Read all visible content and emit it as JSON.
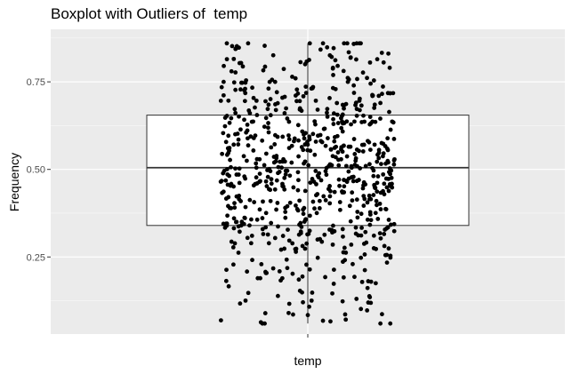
{
  "chart_data": {
    "type": "boxplot",
    "title": "Boxplot with Outliers of  temp",
    "xlabel": "temp",
    "ylabel": "Frequency",
    "categories": [
      "temp"
    ],
    "x_tick_labels": [
      "temp"
    ],
    "y_tick_labels": [
      "0.25",
      "0.50",
      "0.75"
    ],
    "y_ticks": [
      0.25,
      0.5,
      0.75
    ],
    "ylim": [
      0.03,
      0.9
    ],
    "grid": true,
    "legend": "none",
    "box": {
      "min": 0.06,
      "q1": 0.34,
      "median": 0.505,
      "q3": 0.655,
      "max": 0.86
    },
    "jitter": {
      "count": 731,
      "min": 0.06,
      "max": 0.86
    },
    "colors": {
      "panel_background": "#ebebeb",
      "grid_major": "#ffffff",
      "box_fill": "#ffffff",
      "box_stroke": "#333333",
      "points": "#000000"
    }
  }
}
